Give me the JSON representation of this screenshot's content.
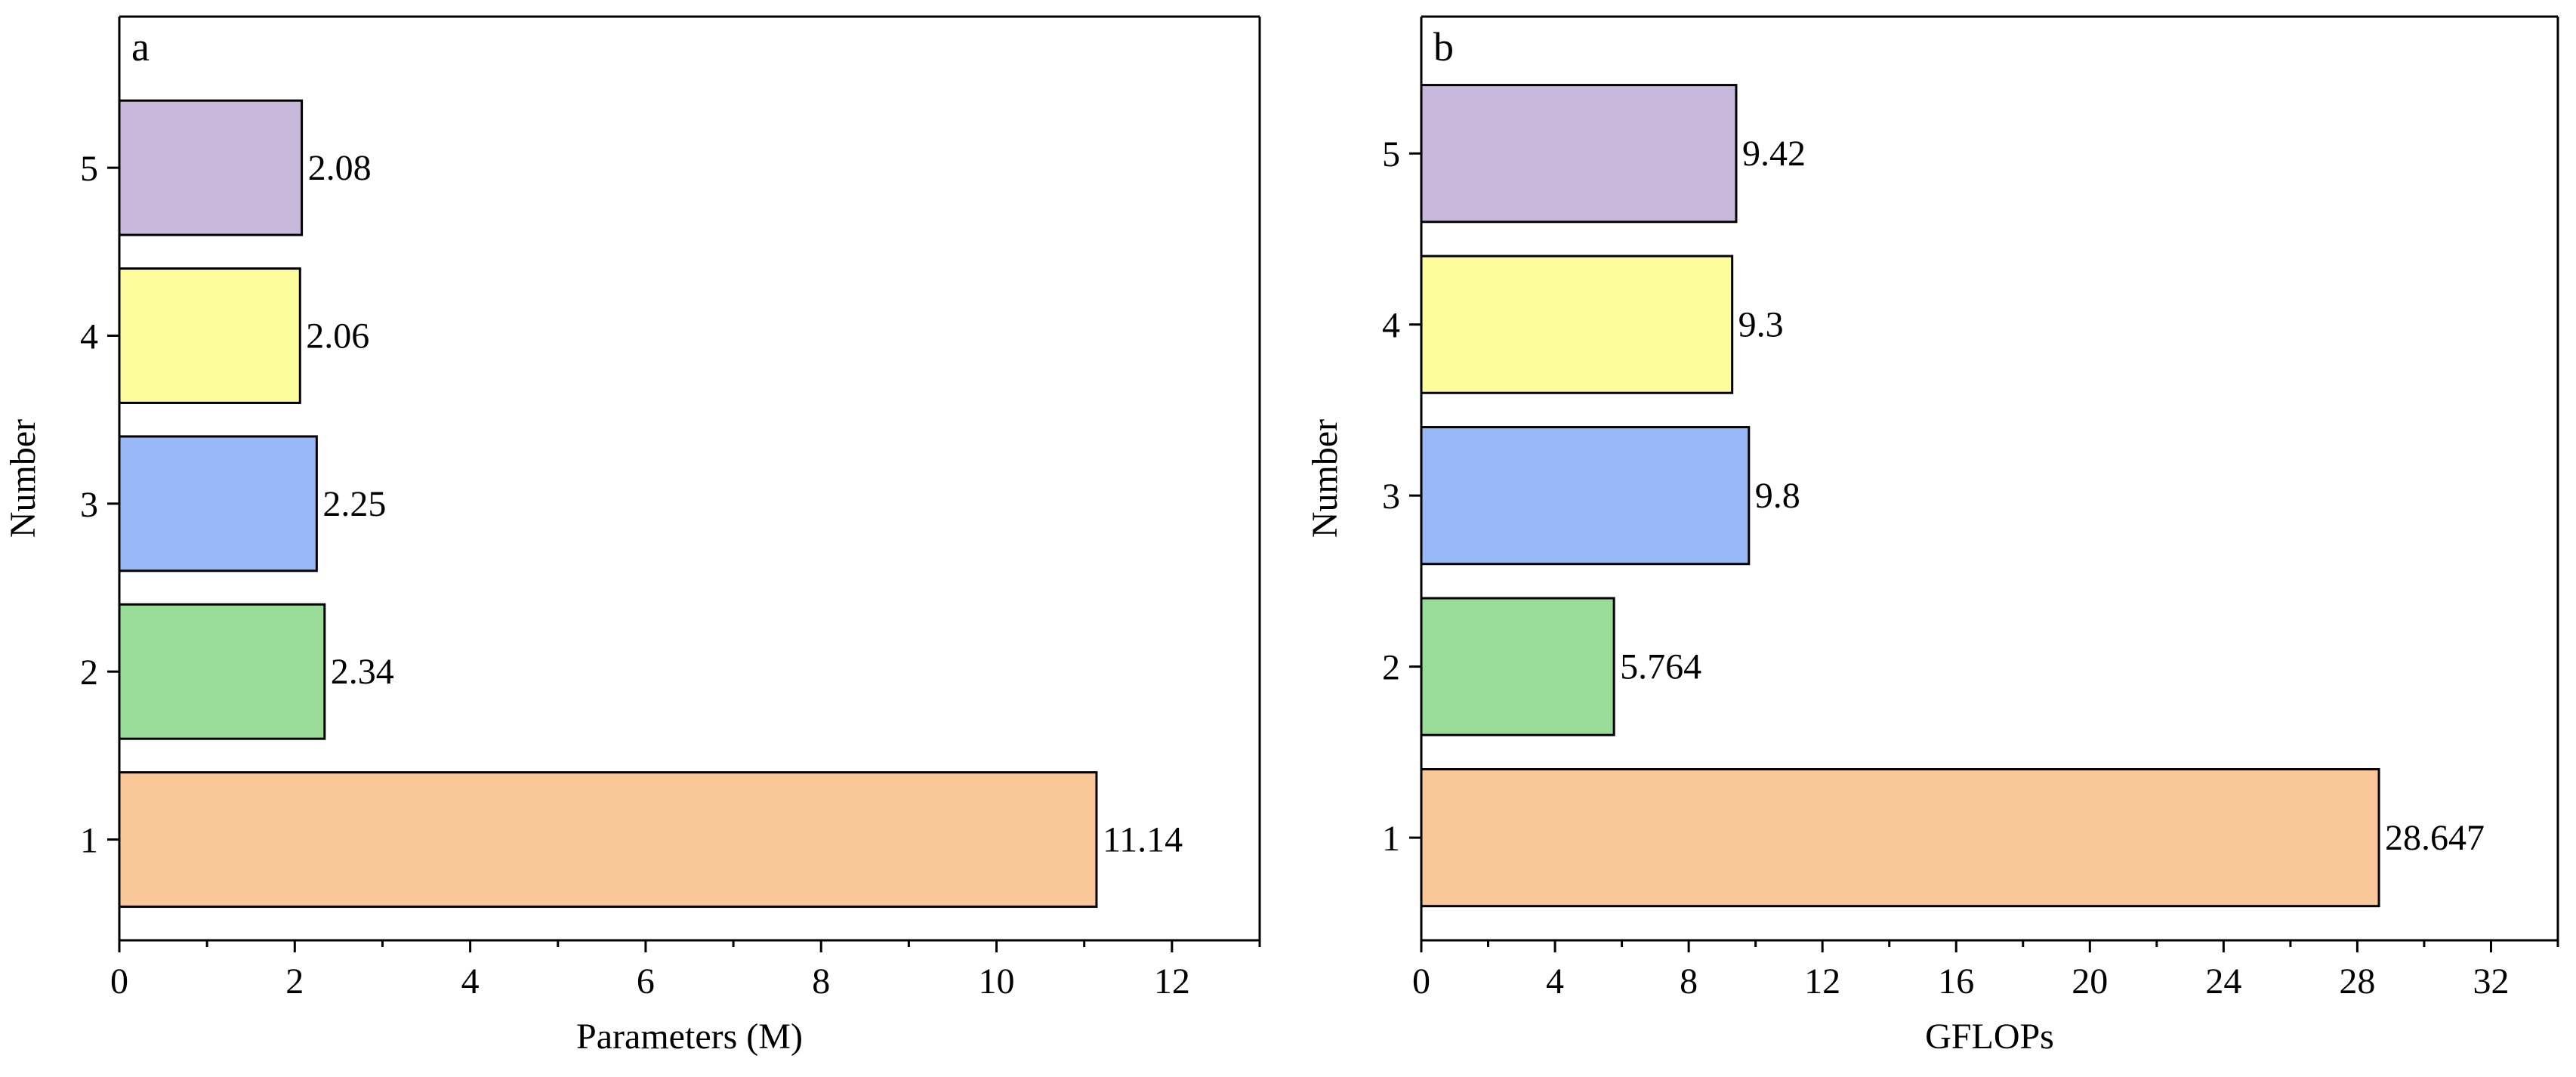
{
  "chart_data": [
    {
      "type": "bar",
      "orientation": "horizontal",
      "panel_label": "a",
      "categories": [
        "1",
        "2",
        "3",
        "4",
        "5"
      ],
      "values": [
        11.14,
        2.34,
        2.25,
        2.06,
        2.08
      ],
      "value_labels": [
        "11.14",
        "2.34",
        "2.25",
        "2.06",
        "2.08"
      ],
      "colors": [
        "#fac898",
        "#98dc98",
        "#98b8f8",
        "#fdfd9e",
        "#c8b8dc"
      ],
      "xlabel": "Parameters (M)",
      "ylabel": "Number",
      "xlim": [
        0,
        13
      ],
      "ylim": [
        0.4,
        5.9
      ],
      "xticks": [
        0,
        2,
        4,
        6,
        8,
        10,
        12
      ],
      "xtick_labels": [
        "0",
        "2",
        "4",
        "6",
        "8",
        "10",
        "12"
      ],
      "x_minor_step": 1,
      "grid": false
    },
    {
      "type": "bar",
      "orientation": "horizontal",
      "panel_label": "b",
      "categories": [
        "1",
        "2",
        "3",
        "4",
        "5"
      ],
      "values": [
        28.647,
        5.764,
        9.8,
        9.3,
        9.42
      ],
      "value_labels": [
        "28.647",
        "5.764",
        "9.8",
        "9.3",
        "9.42"
      ],
      "colors": [
        "#fac898",
        "#98dc98",
        "#98b8f8",
        "#fdfd9e",
        "#c8b8dc"
      ],
      "xlabel": "GFLOPs",
      "ylabel": "Number",
      "xlim": [
        0,
        34
      ],
      "ylim": [
        0.4,
        5.8
      ],
      "xticks": [
        0,
        4,
        8,
        12,
        16,
        20,
        24,
        28,
        32
      ],
      "xtick_labels": [
        "0",
        "4",
        "8",
        "12",
        "16",
        "20",
        "24",
        "28",
        "32"
      ],
      "x_minor_step": 2,
      "grid": false
    }
  ]
}
